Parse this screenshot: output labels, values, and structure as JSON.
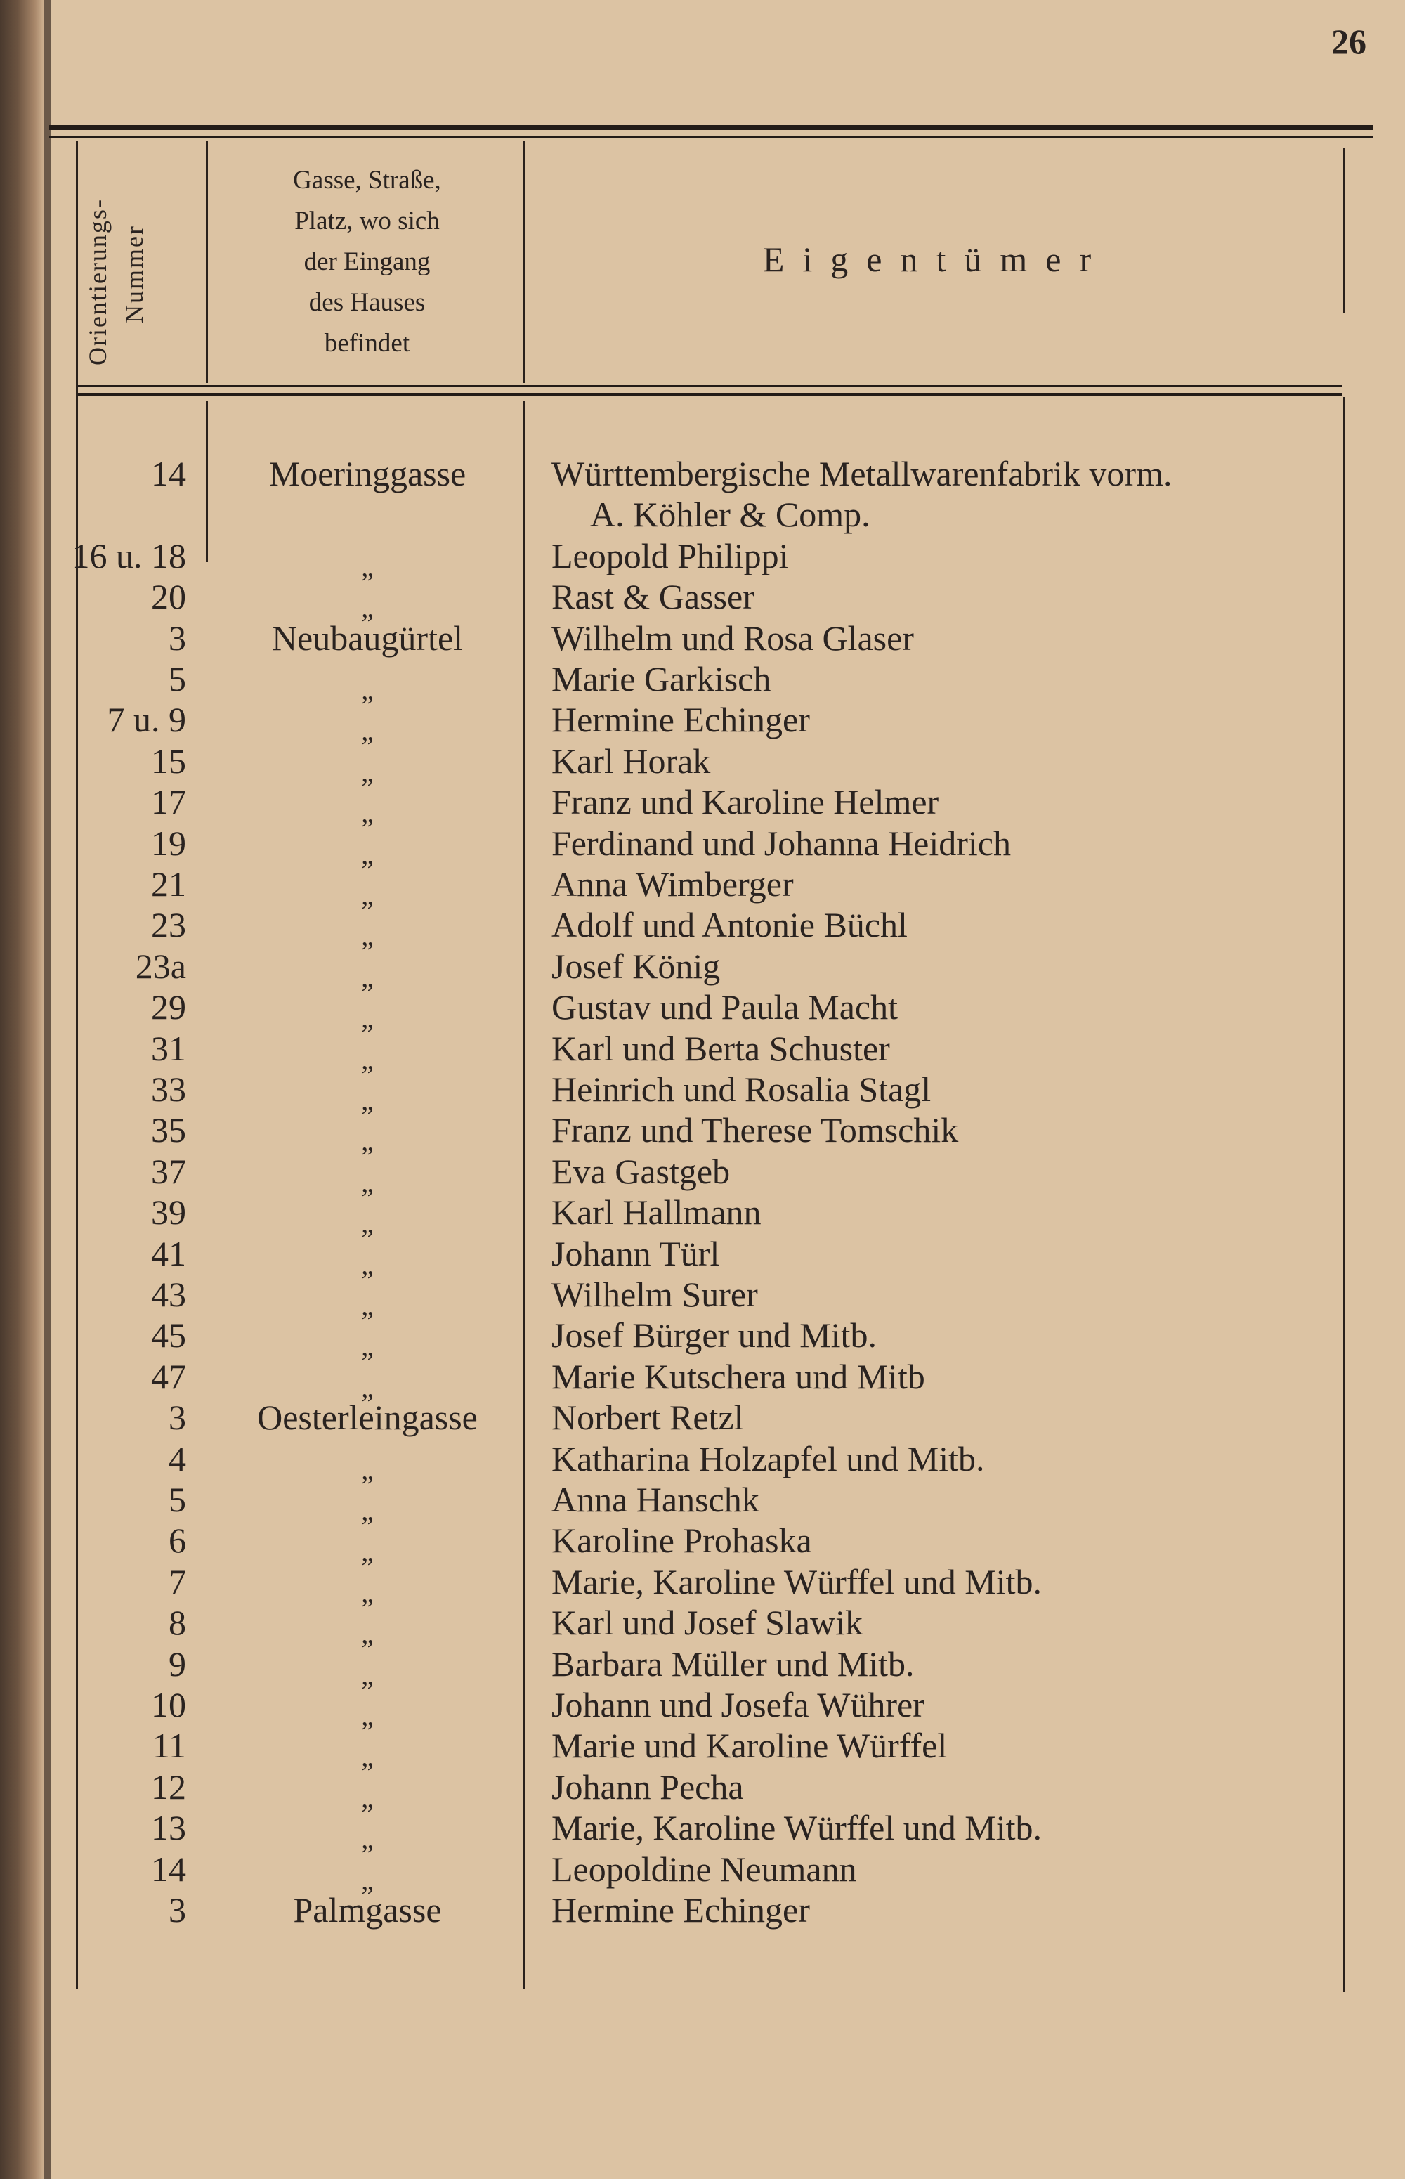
{
  "page_number": "26",
  "header": {
    "col_number": [
      "Orientierungs-",
      "Nummer"
    ],
    "col_street": [
      "Gasse, Straße,",
      "Platz, wo sich",
      "der Eingang",
      "des Hauses",
      "befindet"
    ],
    "col_owner": "Eigentümer"
  },
  "rows": [
    {
      "num": "14",
      "street": "Moeringgasse",
      "owner": "Württembergische Metallwarenfabrik vorm.",
      "owner_cont": "A. Köhler & Comp."
    },
    {
      "num": "16 u. 18",
      "street": "„",
      "owner": "Leopold Philippi"
    },
    {
      "num": "20",
      "street": "„",
      "owner": "Rast & Gasser"
    },
    {
      "num": "3",
      "street": "Neubaugürtel",
      "owner": "Wilhelm und Rosa Glaser"
    },
    {
      "num": "5",
      "street": "„",
      "owner": "Marie Garkisch"
    },
    {
      "num": "7 u. 9",
      "street": "„",
      "owner": "Hermine Echinger"
    },
    {
      "num": "15",
      "street": "„",
      "owner": "Karl Horak"
    },
    {
      "num": "17",
      "street": "„",
      "owner": "Franz und Karoline Helmer"
    },
    {
      "num": "19",
      "street": "„",
      "owner": "Ferdinand und Johanna Heidrich"
    },
    {
      "num": "21",
      "street": "„",
      "owner": "Anna Wimberger"
    },
    {
      "num": "23",
      "street": "„",
      "owner": "Adolf und Antonie Büchl"
    },
    {
      "num": "23a",
      "street": "„",
      "owner": "Josef König"
    },
    {
      "num": "29",
      "street": "„",
      "owner": "Gustav und Paula Macht"
    },
    {
      "num": "31",
      "street": "„",
      "owner": "Karl und Berta Schuster"
    },
    {
      "num": "33",
      "street": "„",
      "owner": "Heinrich und Rosalia Stagl"
    },
    {
      "num": "35",
      "street": "„",
      "owner": "Franz und Therese Tomschik"
    },
    {
      "num": "37",
      "street": "„",
      "owner": "Eva Gastgeb"
    },
    {
      "num": "39",
      "street": "„",
      "owner": "Karl Hallmann"
    },
    {
      "num": "41",
      "street": "„",
      "owner": "Johann Türl"
    },
    {
      "num": "43",
      "street": "„",
      "owner": "Wilhelm Surer"
    },
    {
      "num": "45",
      "street": "„",
      "owner": "Josef Bürger und Mitb."
    },
    {
      "num": "47",
      "street": "„",
      "owner": "Marie Kutschera und Mitb"
    },
    {
      "num": "3",
      "street": "Oesterleingasse",
      "owner": "Norbert Retzl"
    },
    {
      "num": "4",
      "street": "„",
      "owner": "Katharina Holzapfel und Mitb."
    },
    {
      "num": "5",
      "street": "„",
      "owner": "Anna Hanschk"
    },
    {
      "num": "6",
      "street": "„",
      "owner": "Karoline Prohaska"
    },
    {
      "num": "7",
      "street": "„",
      "owner": "Marie, Karoline Würffel und Mitb."
    },
    {
      "num": "8",
      "street": "„",
      "owner": "Karl und Josef Slawik"
    },
    {
      "num": "9",
      "street": "„",
      "owner": "Barbara Müller und Mitb."
    },
    {
      "num": "10",
      "street": "„",
      "owner": "Johann und Josefa Wührer"
    },
    {
      "num": "11",
      "street": "„",
      "owner": "Marie und Karoline Würffel"
    },
    {
      "num": "12",
      "street": "„",
      "owner": "Johann Pecha"
    },
    {
      "num": "13",
      "street": "„",
      "owner": "Marie, Karoline Würffel und Mitb."
    },
    {
      "num": "14",
      "street": "„",
      "owner": "Leopoldine Neumann"
    },
    {
      "num": "3",
      "street": "Palmgasse",
      "owner": "Hermine Echinger"
    }
  ]
}
